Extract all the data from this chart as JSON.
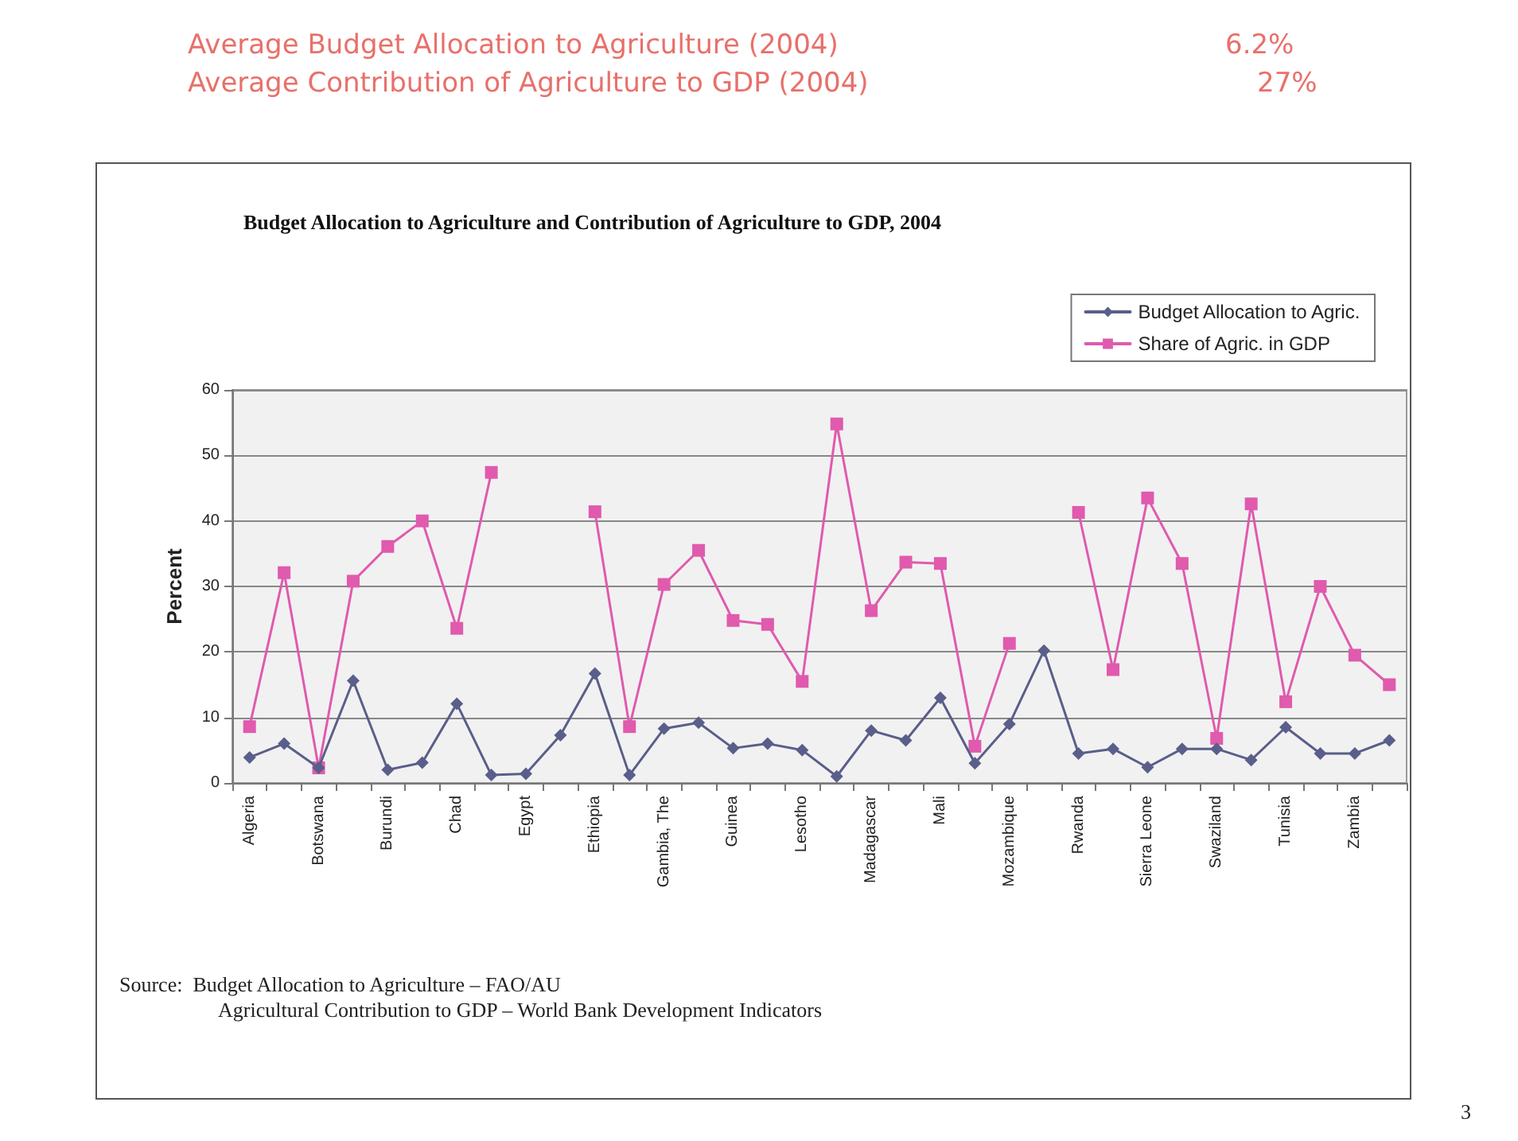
{
  "chart_data": {
    "type": "line",
    "title": "Budget Allocation to Agriculture and Contribution of Agriculture to GDP, 2004",
    "ylabel": "Percent",
    "annotations": [
      "Average Budget Allocation to Agriculture (2004)",
      "6.2%",
      "Average Contribution of Agriculture to GDP (2004)",
      "27%",
      "Source:  Budget Allocation to Agriculture – FAO/AU",
      "Agricultural Contribution to GDP – World Bank Development Indicators",
      "3"
    ],
    "categories": [
      "Algeria",
      null,
      "Botswana",
      null,
      "Burundi",
      null,
      "Chad",
      null,
      "Egypt",
      null,
      "Ethiopia",
      null,
      "Gambia, The",
      null,
      "Guinea",
      null,
      "Lesotho",
      null,
      "Madagascar",
      null,
      "Mali",
      null,
      "Mozambique",
      null,
      "Rwanda",
      null,
      "Sierra Leone",
      null,
      "Swaziland",
      null,
      "Tunisia",
      null,
      "Zambia",
      null
    ],
    "series": [
      {
        "name": "Budget Allocation to Agric.",
        "color": "#5a5e8a",
        "marker": "diamond",
        "values": [
          3.9,
          6,
          2.3,
          15.6,
          2,
          3.1,
          12.1,
          1.2,
          1.4,
          7.3,
          16.7,
          1.2,
          8.3,
          9.2,
          5.3,
          6,
          5,
          1,
          8,
          6.5,
          13,
          3,
          9,
          20.2,
          4.5,
          5.2,
          2.4,
          5.2,
          5.2,
          3.5,
          8.5,
          4.5,
          4.5,
          6.5
        ]
      },
      {
        "name": "Share of Agric. in GDP",
        "color": "#e05aae",
        "marker": "square",
        "values": [
          8.6,
          32.1,
          2.3,
          30.8,
          36.1,
          40,
          23.6,
          47.4,
          null,
          null,
          41.4,
          8.6,
          30.3,
          35.5,
          24.8,
          24.2,
          15.5,
          54.8,
          26.3,
          33.7,
          33.5,
          5.6,
          21.3,
          null,
          41.3,
          17.3,
          43.5,
          33.5,
          6.8,
          42.6,
          12.4,
          30,
          19.5,
          15
        ]
      }
    ],
    "ylim": [
      0,
      60
    ],
    "yticks": [
      0,
      10,
      20,
      30,
      40,
      50,
      60
    ],
    "grid": "y",
    "legend": "top right",
    "line_style": "solid"
  }
}
